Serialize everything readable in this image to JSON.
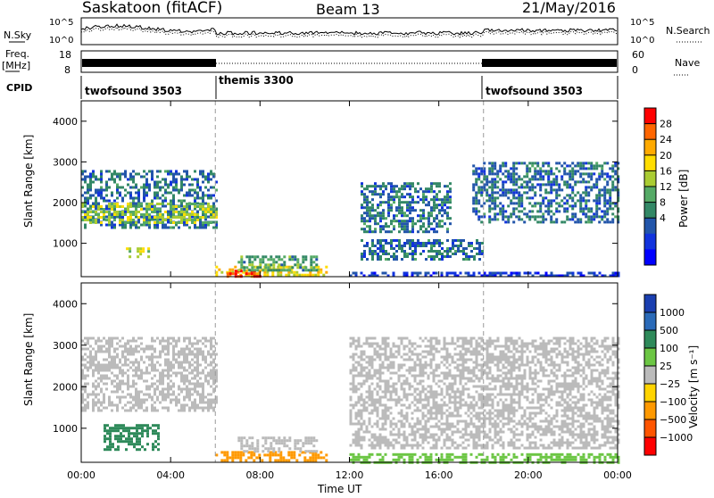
{
  "header": {
    "station": "Saskatoon (fitACF)",
    "beam": "Beam 13",
    "date": "21/May/2016"
  },
  "noise_panel": {
    "left_label": "N.Sky",
    "right_label": "N.Search",
    "left_ticks": [
      "10^5",
      "10^0"
    ],
    "right_ticks": [
      "10^5",
      "10^0"
    ]
  },
  "freq_panel": {
    "left_label_1": "Freq.",
    "left_label_2": "[MHz]",
    "right_label": "Nave",
    "left_ticks": [
      "18",
      "8"
    ],
    "right_ticks": [
      "60",
      "0"
    ]
  },
  "cpid_panel": {
    "label": "CPID",
    "segments": [
      {
        "name": "twofsound 3503",
        "start_hour": 0,
        "end_hour": 6
      },
      {
        "name": "themis 3300",
        "start_hour": 6,
        "end_hour": 18
      },
      {
        "name": "twofsound 3503",
        "start_hour": 18,
        "end_hour": 24
      }
    ]
  },
  "power_panel": {
    "ylabel": "Slant Range [km]",
    "cbar_label": "Power [dB]",
    "cbar_ticks": [
      "28",
      "24",
      "20",
      "16",
      "12",
      "8",
      "4"
    ],
    "cbar_colors": [
      "#ff0000",
      "#ff6600",
      "#ffaa00",
      "#ffdd00",
      "#aacc33",
      "#55aa66",
      "#338866",
      "#2255aa",
      "#1133dd",
      "#0000ff"
    ]
  },
  "velocity_panel": {
    "ylabel": "Slant Range [km]",
    "cbar_label": "Velocity [m s⁻¹]",
    "cbar_ticks": [
      "1000",
      "500",
      "100",
      "25",
      "−25",
      "−100",
      "−500",
      "−1000"
    ],
    "cbar_colors": [
      "#1a3fb0",
      "#2a6ab8",
      "#2e8a5a",
      "#6cc644",
      "#bbbbbb",
      "#ffd400",
      "#ff9900",
      "#ff5500",
      "#ff0000"
    ]
  },
  "y_ticks": [
    "4000",
    "3000",
    "2000",
    "1000"
  ],
  "x_ticks": [
    "00:00",
    "04:00",
    "08:00",
    "12:00",
    "16:00",
    "20:00",
    "00:00"
  ],
  "xlabel": "Time UT",
  "chart_data": {
    "type": "heatmap",
    "x_range_hours": [
      0,
      24
    ],
    "y_range_km": [
      180,
      4500
    ],
    "mode_change_hours": [
      6,
      18
    ],
    "power_regions": [
      {
        "t0": 0.0,
        "t1": 6.0,
        "r0": 1400,
        "r1": 2800,
        "db": 8
      },
      {
        "t0": 0.0,
        "t1": 6.0,
        "r0": 1500,
        "r1": 2000,
        "db": 16
      },
      {
        "t0": 2.0,
        "t1": 3.0,
        "r0": 650,
        "r1": 900,
        "db": 16
      },
      {
        "t0": 6.0,
        "t1": 11.0,
        "r0": 200,
        "r1": 450,
        "db": 20
      },
      {
        "t0": 6.5,
        "t1": 8.0,
        "r0": 200,
        "r1": 350,
        "db": 28
      },
      {
        "t0": 7.0,
        "t1": 10.5,
        "r0": 350,
        "r1": 700,
        "db": 12
      },
      {
        "t0": 12.5,
        "t1": 18.0,
        "r0": 600,
        "r1": 1100,
        "db": 8
      },
      {
        "t0": 12.5,
        "t1": 16.5,
        "r0": 1300,
        "r1": 2500,
        "db": 8
      },
      {
        "t0": 17.5,
        "t1": 24.0,
        "r0": 1500,
        "r1": 3000,
        "db": 8
      },
      {
        "t0": 12.0,
        "t1": 24.0,
        "r0": 200,
        "r1": 300,
        "db": 4
      }
    ],
    "velocity_regions": [
      {
        "t0": 0.0,
        "t1": 6.0,
        "r0": 1400,
        "r1": 3200,
        "v": 0
      },
      {
        "t0": 1.0,
        "t1": 3.5,
        "r0": 500,
        "r1": 1100,
        "v": 100
      },
      {
        "t0": 6.0,
        "t1": 11.0,
        "r0": 200,
        "r1": 450,
        "v": -100
      },
      {
        "t0": 7.0,
        "t1": 10.5,
        "r0": 450,
        "r1": 800,
        "v": 0
      },
      {
        "t0": 12.0,
        "t1": 24.0,
        "r0": 500,
        "r1": 3200,
        "v": 0
      },
      {
        "t0": 12.0,
        "t1": 24.0,
        "r0": 200,
        "r1": 400,
        "v": 25
      }
    ]
  }
}
